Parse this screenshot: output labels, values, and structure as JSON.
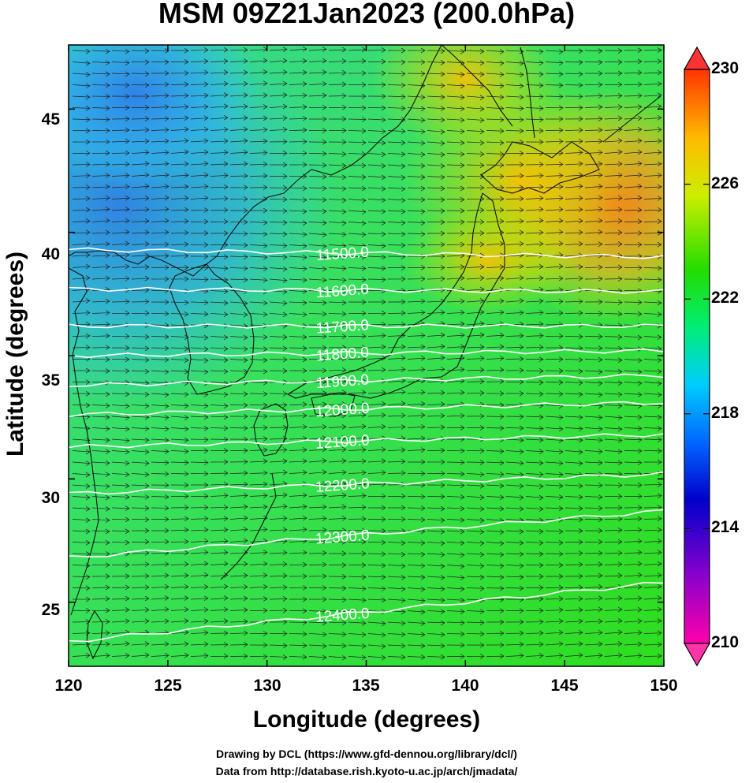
{
  "title": "MSM 09Z21Jan2023 (200.0hPa)",
  "xlabel": "Longitude (degrees)",
  "ylabel": "Latitude  (degrees)",
  "credits": {
    "line1": "Drawing by DCL (https://www.gfd-dennou.org/library/dcl/)",
    "line2": "Data from http://database.rish.kyoto-u.ac.jp/arch/jmadata/"
  },
  "map": {
    "lon_range": [
      120,
      150
    ],
    "lat_range": [
      22.4,
      47.6
    ],
    "x_ticks": [
      "120",
      "125",
      "130",
      "135",
      "140",
      "145",
      "150"
    ],
    "y_ticks": [
      "25",
      "30",
      "35",
      "40",
      "45"
    ],
    "field": "temperature (K)",
    "vectors": "wind arrows, predominantly westerly"
  },
  "contours": [
    {
      "label": "11500.0",
      "lat_west": 39.3,
      "lat_east": 39.0
    },
    {
      "label": "11600.0",
      "lat_west": 37.7,
      "lat_east": 37.6
    },
    {
      "label": "11700.0",
      "lat_west": 36.2,
      "lat_east": 36.2
    },
    {
      "label": "11800.0",
      "lat_west": 35.0,
      "lat_east": 35.2
    },
    {
      "label": "11900.0",
      "lat_west": 33.8,
      "lat_east": 34.2
    },
    {
      "label": "12000.0",
      "lat_west": 32.6,
      "lat_east": 33.1
    },
    {
      "label": "12100.0",
      "lat_west": 31.3,
      "lat_east": 31.8
    },
    {
      "label": "12200.0",
      "lat_west": 29.4,
      "lat_east": 30.2
    },
    {
      "label": "12300.0",
      "lat_west": 26.8,
      "lat_east": 28.7
    },
    {
      "label": "12400.0",
      "lat_west": 23.4,
      "lat_east": 25.8
    }
  ],
  "colorbar": {
    "min": 210,
    "max": 230,
    "ticks": [
      "230",
      "226",
      "222",
      "218",
      "214",
      "210"
    ],
    "colors": [
      "#ff00aa",
      "#8800cc",
      "#0000cc",
      "#0066ff",
      "#00ccff",
      "#00ee77",
      "#22dd00",
      "#ccee00",
      "#ffbb00",
      "#ff3300"
    ]
  }
}
